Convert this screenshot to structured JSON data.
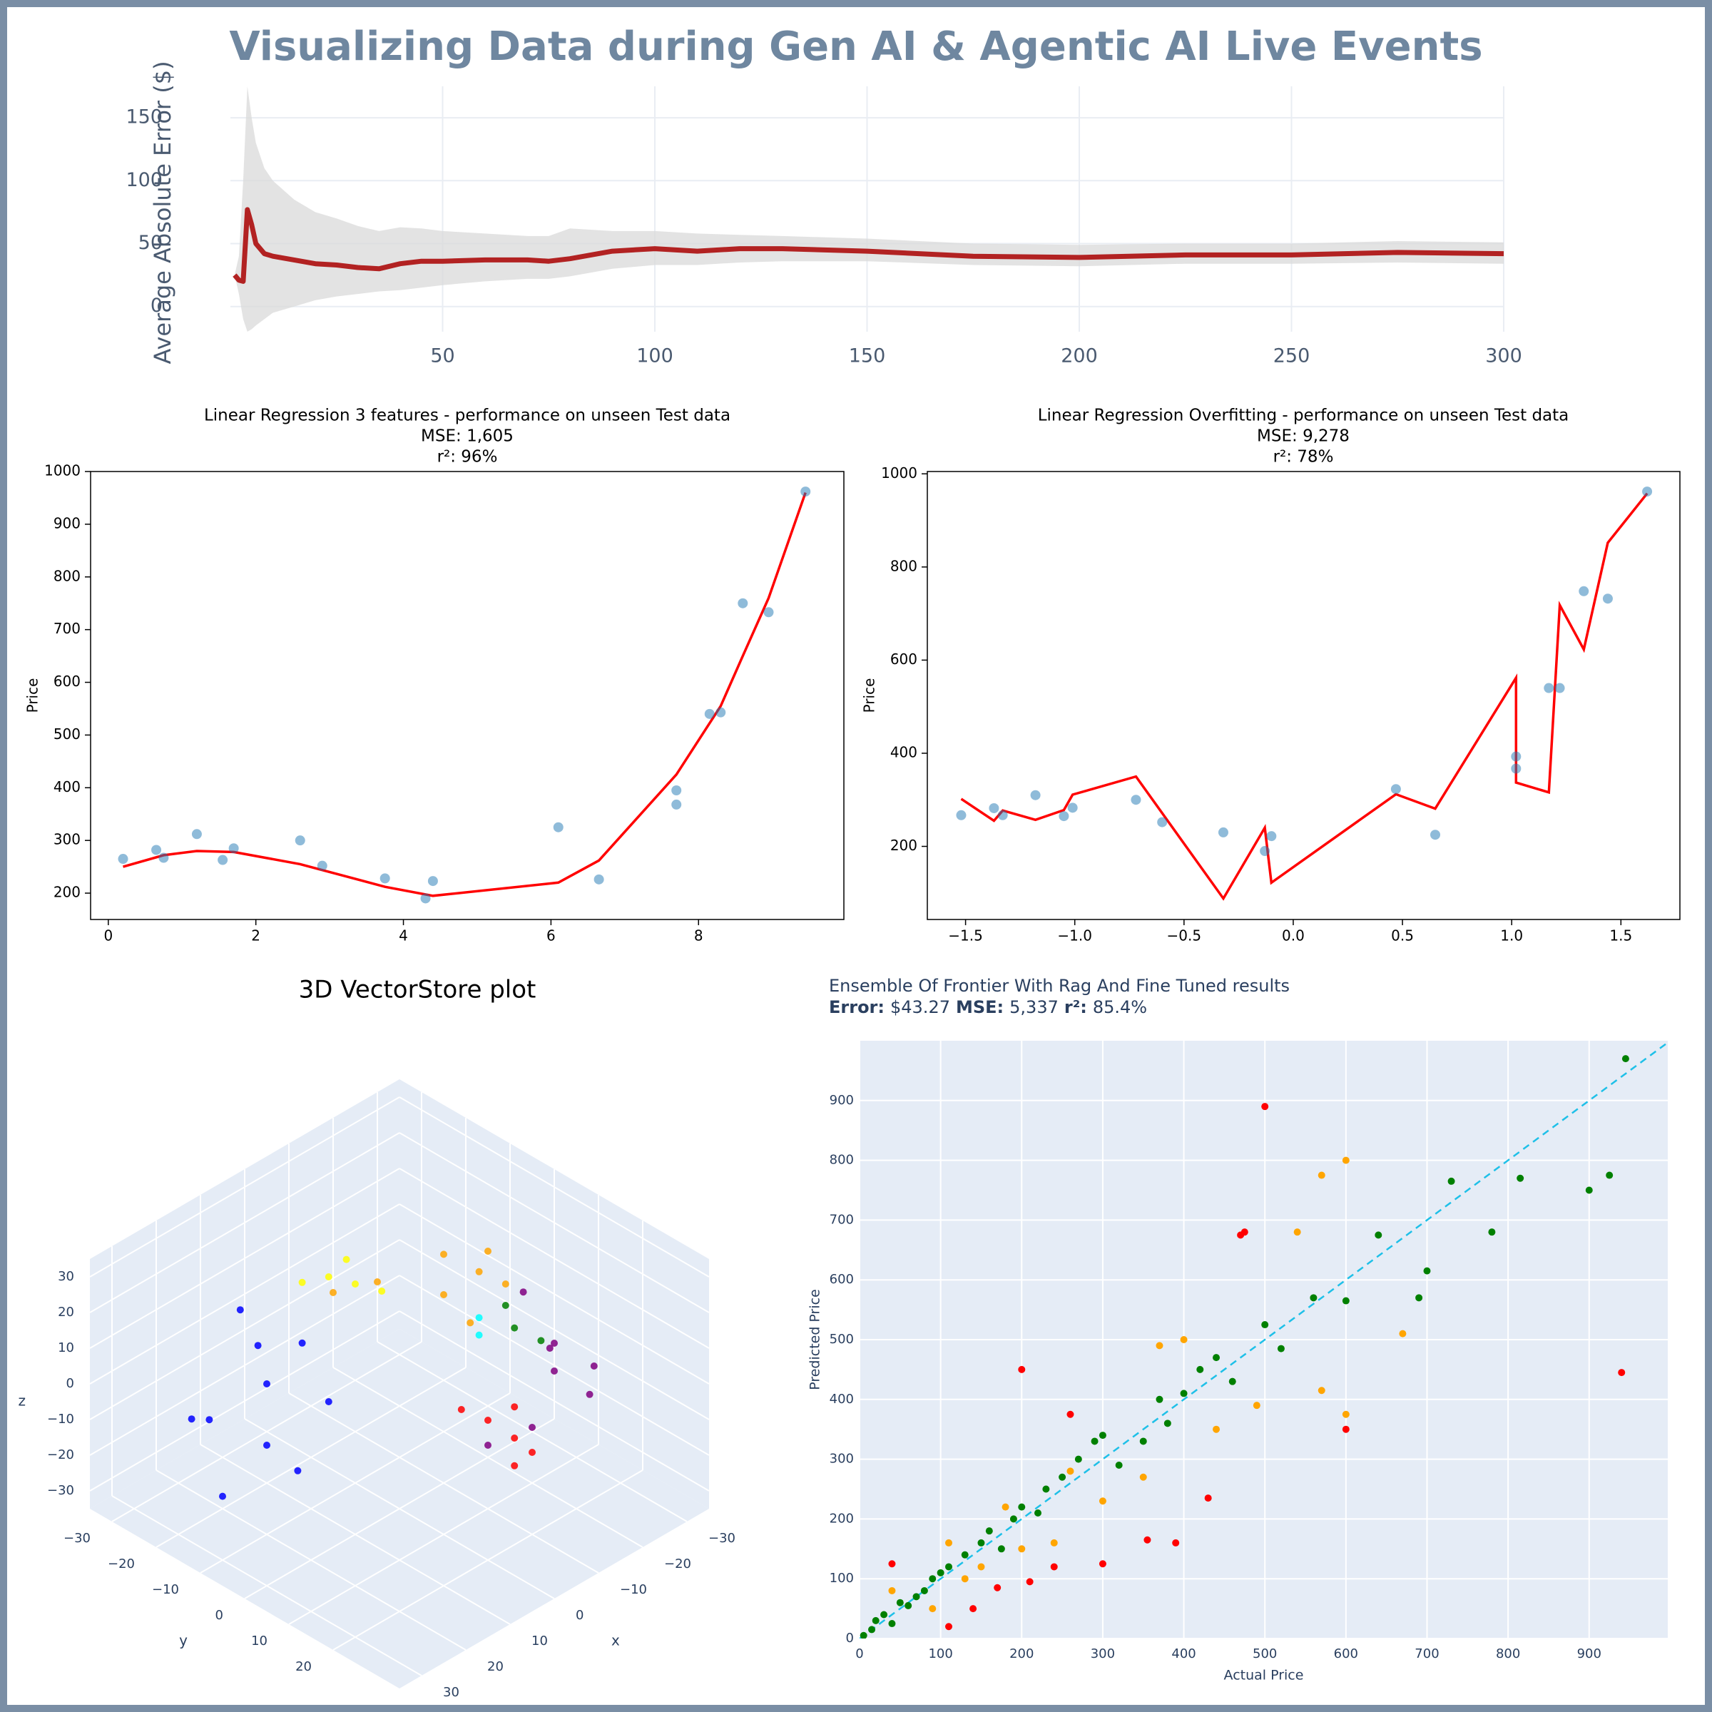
{
  "title": "Visualizing Data during Gen AI & Agentic AI Live Events",
  "chart_data": [
    {
      "type": "line",
      "ylabel": "Average Absolute Error ($)",
      "x": [
        1,
        2,
        3,
        4,
        5,
        6,
        8,
        10,
        15,
        20,
        25,
        30,
        35,
        40,
        45,
        50,
        60,
        70,
        75,
        80,
        90,
        100,
        110,
        120,
        130,
        150,
        175,
        200,
        225,
        250,
        275,
        300
      ],
      "values": [
        25,
        21,
        20,
        77,
        65,
        50,
        42,
        40,
        37,
        34,
        33,
        31,
        30,
        34,
        36,
        36,
        37,
        37,
        36,
        38,
        44,
        46,
        44,
        46,
        46,
        44,
        40,
        39,
        41,
        41,
        43,
        42
      ],
      "band_upper": [
        25,
        40,
        100,
        175,
        150,
        130,
        110,
        100,
        85,
        75,
        70,
        64,
        60,
        63,
        62,
        60,
        58,
        56,
        56,
        62,
        60,
        60,
        58,
        57,
        56,
        54,
        50,
        49,
        50,
        50,
        52,
        51
      ],
      "band_lower": [
        25,
        10,
        -10,
        -20,
        -18,
        -15,
        -10,
        -5,
        0,
        5,
        8,
        10,
        12,
        13,
        15,
        17,
        20,
        22,
        22,
        24,
        30,
        33,
        33,
        35,
        36,
        36,
        33,
        32,
        34,
        34,
        35,
        34
      ],
      "color": "#b22222",
      "band_color": "#d9d9d9",
      "xlim": [
        0,
        300
      ],
      "ylim": [
        -20,
        175
      ],
      "xticks": [
        50,
        100,
        150,
        200,
        250,
        300
      ],
      "yticks": [
        0,
        50,
        100,
        150
      ],
      "grid": true
    },
    {
      "type": "scatter",
      "title": [
        "Linear Regression 3 features - performance on unseen Test data",
        "MSE: 1,605",
        "r²: 96%"
      ],
      "ylabel": "Price",
      "x": [
        0.2,
        0.65,
        0.75,
        1.2,
        1.55,
        1.7,
        2.6,
        2.9,
        3.75,
        4.3,
        4.4,
        6.1,
        6.65,
        7.7,
        7.7,
        8.15,
        8.3,
        8.6,
        8.95,
        9.45
      ],
      "values": [
        265,
        282,
        267,
        312,
        263,
        285,
        300,
        252,
        228,
        190,
        223,
        325,
        226,
        395,
        368,
        540,
        543,
        750,
        733,
        962
      ],
      "color": "#1f77b4",
      "fit_line": {
        "x": [
          0.2,
          0.75,
          1.2,
          1.7,
          2.6,
          3.75,
          4.4,
          6.1,
          6.65,
          7.7,
          8.3,
          8.6,
          8.95,
          9.45
        ],
        "y": [
          250,
          272,
          280,
          278,
          255,
          212,
          195,
          220,
          262,
          425,
          555,
          650,
          760,
          960
        ],
        "color": "red"
      },
      "xlim": [
        -0.24,
        9.97
      ],
      "ylim": [
        150,
        1000
      ],
      "xticks": [
        0,
        2,
        4,
        6,
        8
      ],
      "yticks": [
        200,
        300,
        400,
        500,
        600,
        700,
        800,
        900,
        1000
      ],
      "grid": false
    },
    {
      "type": "scatter",
      "title": [
        "Linear Regression Overfitting - performance on unseen Test data",
        "MSE: 9,278",
        "r²: 78%"
      ],
      "ylabel": "Price",
      "x": [
        -1.52,
        -1.37,
        -1.33,
        -1.18,
        -1.05,
        -1.01,
        -0.72,
        -0.6,
        -0.32,
        -0.13,
        -0.1,
        0.47,
        0.65,
        1.02,
        1.02,
        1.17,
        1.22,
        1.33,
        1.44,
        1.62
      ],
      "values": [
        267,
        282,
        267,
        310,
        265,
        283,
        300,
        252,
        230,
        190,
        222,
        323,
        225,
        393,
        367,
        540,
        540,
        748,
        732,
        962
      ],
      "color": "#1f77b4",
      "fit_line": {
        "x": [
          -1.52,
          -1.37,
          -1.33,
          -1.18,
          -1.05,
          -1.01,
          -0.72,
          -0.32,
          -0.13,
          -0.1,
          0.47,
          0.65,
          1.02,
          1.02,
          1.17,
          1.22,
          1.33,
          1.44,
          1.62
        ],
        "y": [
          302,
          255,
          277,
          257,
          278,
          311,
          350,
          88,
          240,
          122,
          312,
          281,
          562,
          337,
          316,
          718,
          623,
          852,
          958
        ],
        "color": "red"
      },
      "xlim": [
        -1.675,
        1.77
      ],
      "ylim": [
        43,
        1005
      ],
      "xticks": [
        {
          "value": -1.5,
          "label": "−1.5"
        },
        {
          "value": -1.0,
          "label": "−1.0"
        },
        {
          "value": -0.5,
          "label": "−0.5"
        },
        {
          "value": 0,
          "label": "0.0"
        },
        0.5,
        {
          "value": 1,
          "label": "1.0"
        },
        1.5
      ],
      "yticks": [
        200,
        400,
        600,
        800,
        1000
      ],
      "grid": false
    },
    {
      "type": "scatter3d",
      "title": "3D VectorStore plot",
      "xlabel": "x",
      "ylabel": "y",
      "zlabel": "z",
      "xlim": [
        -35,
        35
      ],
      "ylim": [
        -35,
        35
      ],
      "zlim": [
        -35,
        35
      ],
      "xticks": [
        {
          "value": -30,
          "label": "−30"
        },
        {
          "value": -20,
          "label": "−20"
        },
        {
          "value": -10,
          "label": "−10"
        },
        0,
        10,
        20,
        30
      ],
      "yticks": [
        {
          "value": -30,
          "label": "−30"
        },
        {
          "value": -20,
          "label": "−20"
        },
        {
          "value": -10,
          "label": "−10"
        },
        0,
        10,
        20
      ],
      "zticks": [
        {
          "value": -30,
          "label": "−30"
        },
        {
          "value": -20,
          "label": "−20"
        },
        {
          "value": -10,
          "label": "−10"
        },
        0,
        10,
        20,
        30
      ],
      "series": [
        {
          "color": "blue",
          "x": [
            15,
            20,
            12,
            25,
            18,
            10,
            22,
            8,
            28,
            14
          ],
          "y": [
            -15,
            -10,
            -20,
            -18,
            -5,
            -12,
            -25,
            -8,
            -12,
            -22
          ],
          "z": [
            0,
            -10,
            5,
            -5,
            -15,
            10,
            -12,
            -5,
            -20,
            15
          ]
        },
        {
          "color": "orange",
          "x": [
            -10,
            -5,
            -12,
            -8,
            0,
            5,
            -15,
            -6
          ],
          "y": [
            8,
            5,
            12,
            2,
            -5,
            -10,
            5,
            10
          ],
          "z": [
            30,
            25,
            28,
            32,
            25,
            22,
            30,
            20
          ]
        },
        {
          "color": "yellow",
          "x": [
            5,
            8,
            2,
            10,
            4
          ],
          "y": [
            -5,
            -8,
            -2,
            -12,
            -8
          ],
          "z": [
            28,
            30,
            26,
            27,
            32
          ]
        },
        {
          "color": "purple",
          "x": [
            -17,
            -20,
            -15,
            -22,
            -10,
            -18,
            -5,
            -25
          ],
          "y": [
            17,
            15,
            20,
            22,
            20,
            10,
            15,
            18
          ],
          "z": [
            10,
            0,
            15,
            5,
            -5,
            20,
            -10,
            -8
          ]
        },
        {
          "color": "red",
          "x": [
            -5,
            -8,
            -2,
            -10,
            -4,
            -12
          ],
          "y": [
            15,
            18,
            12,
            20,
            22,
            14
          ],
          "z": [
            -3,
            -8,
            0,
            -12,
            -10,
            -5
          ]
        },
        {
          "color": "green",
          "x": [
            -10,
            -14,
            -12
          ],
          "y": [
            16,
            18,
            12
          ],
          "z": [
            20,
            15,
            22
          ]
        },
        {
          "color": "cyan",
          "x": [
            -8,
            -6
          ],
          "y": [
            10,
            12
          ],
          "z": [
            20,
            18
          ]
        }
      ]
    },
    {
      "type": "scatter",
      "title": "Ensemble Of Frontier With Rag And Fine Tuned results",
      "subtitle": [
        {
          "text": "Error:",
          "bold": true
        },
        {
          "text": "$43.27",
          "bold": false
        },
        {
          "text": "MSE:",
          "bold": true
        },
        {
          "text": "5,337",
          "bold": false
        },
        {
          "text": "r²:",
          "bold": true
        },
        {
          "text": "85.4%",
          "bold": false
        }
      ],
      "xlabel": "Actual Price",
      "ylabel": "Predicted Price",
      "series": [
        {
          "color": "green",
          "x": [
            5,
            15,
            20,
            30,
            40,
            50,
            60,
            70,
            80,
            90,
            100,
            110,
            130,
            150,
            160,
            175,
            190,
            200,
            220,
            230,
            250,
            270,
            290,
            300,
            320,
            350,
            370,
            380,
            400,
            420,
            440,
            460,
            500,
            520,
            560,
            600,
            640,
            690,
            700,
            730,
            780,
            815,
            900,
            925,
            945
          ],
          "values": [
            5,
            15,
            30,
            40,
            25,
            60,
            55,
            70,
            80,
            100,
            110,
            120,
            140,
            160,
            180,
            150,
            200,
            220,
            210,
            250,
            270,
            300,
            330,
            340,
            290,
            330,
            400,
            360,
            410,
            450,
            470,
            430,
            525,
            485,
            570,
            565,
            675,
            570,
            615,
            765,
            680,
            770,
            750,
            775,
            970
          ]
        },
        {
          "color": "orange",
          "x": [
            40,
            90,
            110,
            130,
            150,
            180,
            200,
            240,
            260,
            300,
            350,
            370,
            400,
            440,
            490,
            540,
            570,
            600,
            570,
            600,
            670
          ],
          "values": [
            80,
            50,
            160,
            100,
            120,
            220,
            150,
            160,
            280,
            230,
            270,
            490,
            500,
            350,
            390,
            680,
            775,
            800,
            415,
            375,
            510
          ]
        },
        {
          "color": "red",
          "x": [
            40,
            110,
            140,
            170,
            200,
            210,
            240,
            260,
            300,
            355,
            390,
            430,
            470,
            475,
            500,
            600,
            940
          ],
          "values": [
            125,
            20,
            50,
            85,
            450,
            95,
            120,
            375,
            125,
            165,
            160,
            235,
            675,
            680,
            890,
            350,
            445
          ]
        }
      ],
      "reference_line": {
        "x": [
          0,
          1000
        ],
        "y": [
          0,
          1000
        ],
        "color": "#1ec0e8",
        "dash": true
      },
      "xlim": [
        0,
        997
      ],
      "ylim": [
        0,
        1000
      ],
      "xticks": [
        0,
        100,
        200,
        300,
        400,
        500,
        600,
        700,
        800,
        900
      ],
      "yticks": [
        0,
        100,
        200,
        300,
        400,
        500,
        600,
        700,
        800,
        900
      ],
      "grid": true,
      "background": "#e5ecf6"
    }
  ]
}
